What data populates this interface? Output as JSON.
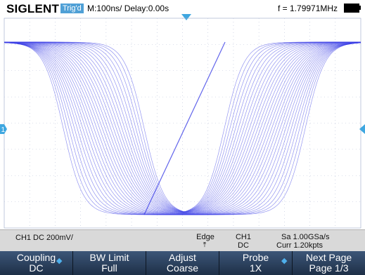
{
  "header": {
    "brand": "SIGLENT",
    "trigger_status": "Trig'd",
    "timebase": "M:100ns/ Delay:0.00s",
    "frequency": "f = 1.79971MHz",
    "battery_icon": "battery-full-icon"
  },
  "waveform": {
    "channel": "CH1",
    "color": "#3b3ee6",
    "ch1_marker_label": "1"
  },
  "status_bar": {
    "ch1_settings": "CH1 DC 200mV/",
    "trigger_type": "Edge",
    "trigger_edge_icon": "rising-edge-icon",
    "trigger_source": "CH1",
    "trigger_coupling": "DC",
    "sample_rate": "Sa 1.00GSa/s",
    "memory_depth": "Curr 1.20kpts"
  },
  "menu": {
    "coupling": {
      "label": "Coupling",
      "value": "DC"
    },
    "bw_limit": {
      "label": "BW Limit",
      "value": "Full"
    },
    "adjust": {
      "label": "Adjust",
      "value": "Coarse"
    },
    "probe": {
      "label": "Probe",
      "value": "1X"
    },
    "next_page": {
      "label": "Next Page",
      "value": "Page 1/3"
    }
  }
}
